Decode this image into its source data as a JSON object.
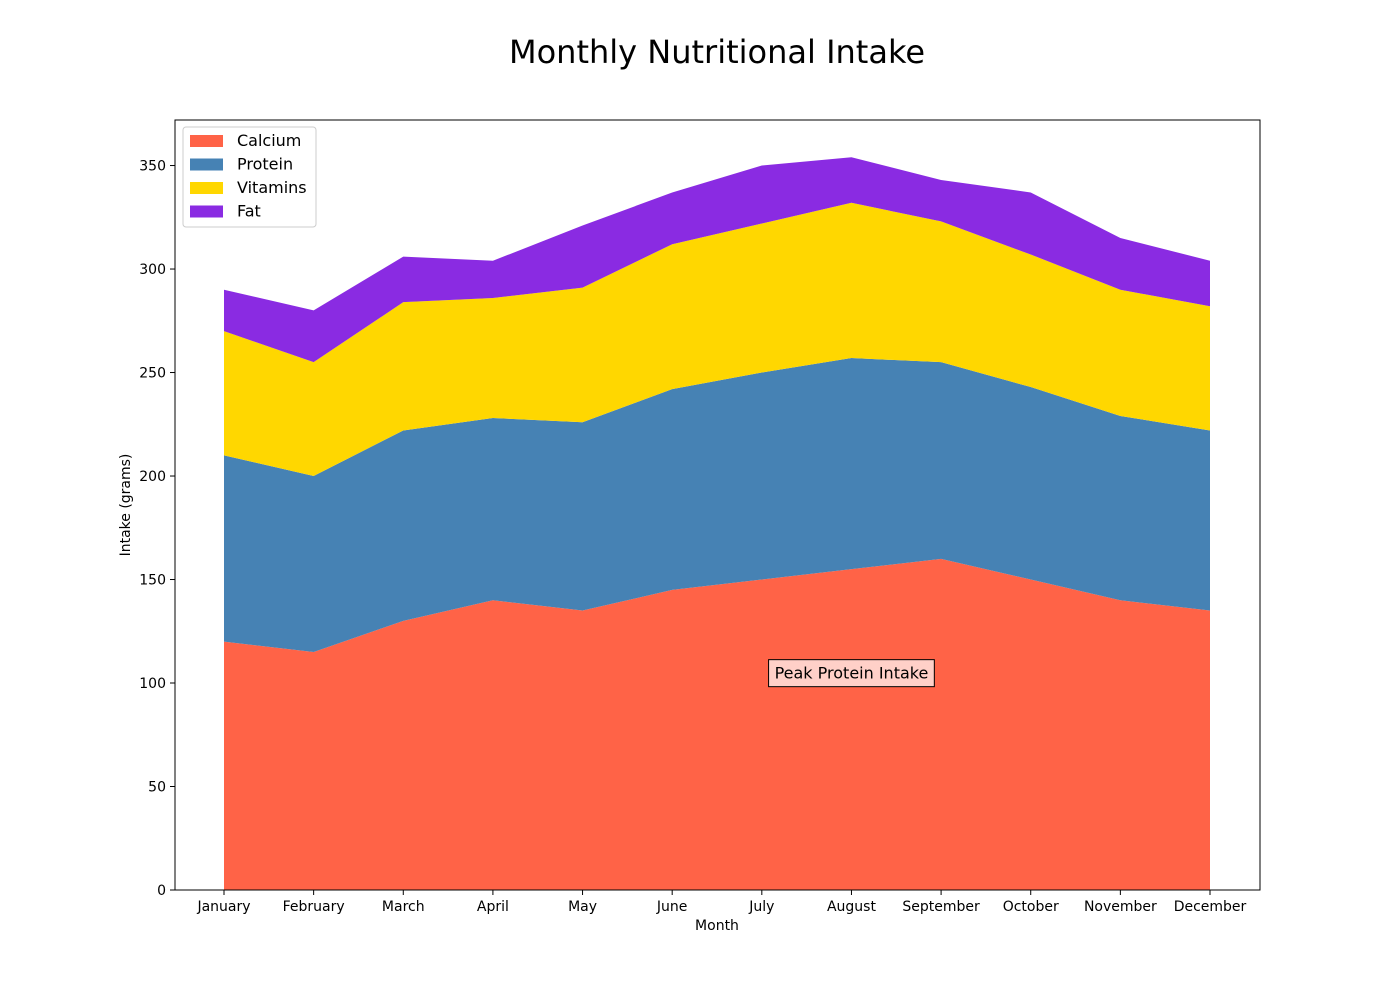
{
  "chart_data": {
    "type": "area",
    "stacked": true,
    "title": "Monthly Nutritional Intake",
    "xlabel": "Month",
    "ylabel": "Intake (grams)",
    "categories": [
      "January",
      "February",
      "March",
      "April",
      "May",
      "June",
      "July",
      "August",
      "September",
      "October",
      "November",
      "December"
    ],
    "ylim": [
      0,
      372
    ],
    "yticks": [
      0,
      50,
      100,
      150,
      200,
      250,
      300,
      350
    ],
    "grid": false,
    "legend_position": "top-left",
    "series": [
      {
        "name": "Calcium",
        "color": "#FF6347",
        "values": [
          120,
          115,
          130,
          140,
          135,
          145,
          150,
          155,
          160,
          150,
          140,
          135
        ]
      },
      {
        "name": "Protein",
        "color": "#4682B4",
        "values": [
          90,
          85,
          92,
          88,
          91,
          97,
          100,
          102,
          95,
          93,
          89,
          87
        ]
      },
      {
        "name": "Vitamins",
        "color": "#FFD700",
        "values": [
          60,
          55,
          62,
          58,
          65,
          70,
          72,
          75,
          68,
          64,
          61,
          60
        ]
      },
      {
        "name": "Fat",
        "color": "#8A2BE2",
        "values": [
          20,
          25,
          22,
          18,
          30,
          25,
          28,
          22,
          20,
          30,
          25,
          22
        ]
      }
    ],
    "annotations": [
      {
        "text": "Peak Protein Intake",
        "x": "August",
        "y": 105
      }
    ]
  }
}
